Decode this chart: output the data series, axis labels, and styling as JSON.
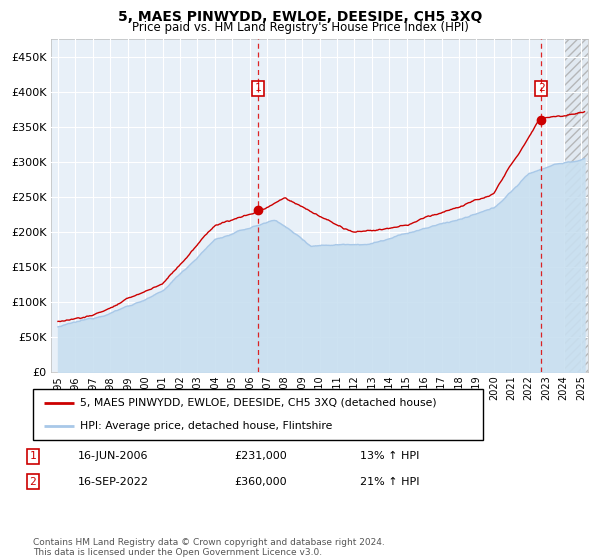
{
  "title": "5, MAES PINWYDD, EWLOE, DEESIDE, CH5 3XQ",
  "subtitle": "Price paid vs. HM Land Registry's House Price Index (HPI)",
  "legend_line1": "5, MAES PINWYDD, EWLOE, DEESIDE, CH5 3XQ (detached house)",
  "legend_line2": "HPI: Average price, detached house, Flintshire",
  "transaction1_date": "16-JUN-2006",
  "transaction1_price": "£231,000",
  "transaction1_hpi": "13% ↑ HPI",
  "transaction2_date": "16-SEP-2022",
  "transaction2_price": "£360,000",
  "transaction2_hpi": "21% ↑ HPI",
  "footer": "Contains HM Land Registry data © Crown copyright and database right 2024.\nThis data is licensed under the Open Government Licence v3.0.",
  "ylim_max": 475000,
  "hpi_color": "#a8c8e8",
  "hpi_fill_color": "#c8dff0",
  "price_color": "#cc0000",
  "plot_bg": "#e8f0f8",
  "grid_color": "#ffffff",
  "transaction1_x": 2006.46,
  "transaction1_y": 231000,
  "transaction2_x": 2022.71,
  "transaction2_y": 360000,
  "hatch_start": 2024.0,
  "xlim_left": 1994.6,
  "xlim_right": 2025.4,
  "yticks": [
    0,
    50000,
    100000,
    150000,
    200000,
    250000,
    300000,
    350000,
    400000,
    450000
  ],
  "xtick_years": [
    1995,
    1996,
    1997,
    1998,
    1999,
    2000,
    2001,
    2002,
    2003,
    2004,
    2005,
    2006,
    2007,
    2008,
    2009,
    2010,
    2011,
    2012,
    2013,
    2014,
    2015,
    2016,
    2017,
    2018,
    2019,
    2020,
    2021,
    2022,
    2023,
    2024,
    2025
  ]
}
